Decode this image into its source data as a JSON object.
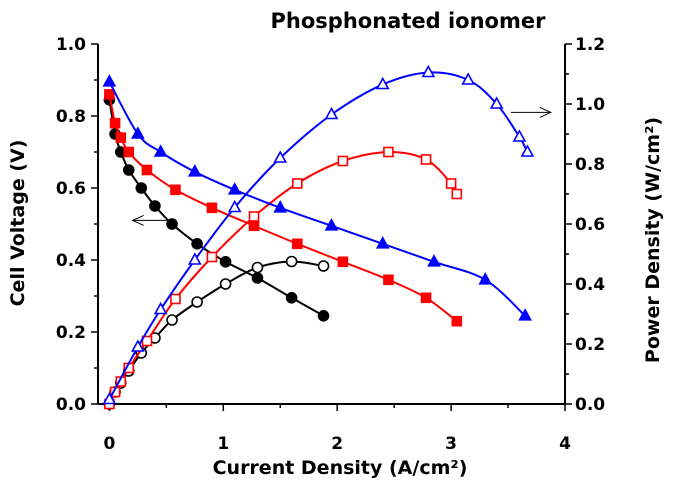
{
  "chart_data": {
    "type": "line",
    "title": "Phosphonated ionomer",
    "xlabel": "Current Density (A/cm²)",
    "ylabel": "Cell Voltage (V)",
    "y2label": "Power Density (W/cm²)",
    "xlim": [
      -0.1,
      4.0
    ],
    "ylim": [
      0.0,
      1.0
    ],
    "y2lim": [
      0.0,
      1.2
    ],
    "xticks": [
      "0",
      "1",
      "2",
      "3",
      "4"
    ],
    "yticks": [
      "0.0",
      "0.2",
      "0.4",
      "0.6",
      "0.8",
      "1.0"
    ],
    "y2ticks": [
      "0.0",
      "0.2",
      "0.4",
      "0.6",
      "0.8",
      "1.0",
      "1.2"
    ],
    "grid": false,
    "legend": "none",
    "annotations": [
      {
        "type": "arrow",
        "direction": "left",
        "points_to": "left axis (voltage)",
        "at": [
          0.38,
          0.51
        ]
      },
      {
        "type": "arrow",
        "direction": "right",
        "points_to": "right axis (power density)",
        "at": [
          3.7,
          0.81
        ]
      }
    ],
    "series": [
      {
        "kind": "voltage",
        "axis": "left",
        "color": "#000000",
        "marker": "circle-filled",
        "x": [
          0.0,
          0.05,
          0.1,
          0.17,
          0.28,
          0.4,
          0.55,
          0.77,
          1.02,
          1.3,
          1.6,
          1.88
        ],
        "y": [
          0.845,
          0.75,
          0.7,
          0.65,
          0.6,
          0.55,
          0.5,
          0.445,
          0.395,
          0.35,
          0.295,
          0.245
        ]
      },
      {
        "kind": "power",
        "axis": "right",
        "color": "#000000",
        "marker": "circle-open",
        "x": [
          0.0,
          0.05,
          0.1,
          0.17,
          0.28,
          0.4,
          0.55,
          0.77,
          1.02,
          1.3,
          1.6,
          1.88
        ],
        "y": [
          0.0,
          0.04,
          0.07,
          0.11,
          0.17,
          0.22,
          0.28,
          0.34,
          0.4,
          0.455,
          0.475,
          0.46
        ]
      },
      {
        "kind": "voltage",
        "axis": "left",
        "color": "#ff0000",
        "marker": "square-filled",
        "x": [
          0.0,
          0.05,
          0.1,
          0.17,
          0.33,
          0.58,
          0.9,
          1.27,
          1.65,
          2.05,
          2.45,
          2.78,
          3.05
        ],
        "y": [
          0.86,
          0.78,
          0.74,
          0.7,
          0.65,
          0.595,
          0.545,
          0.495,
          0.445,
          0.395,
          0.345,
          0.295,
          0.23
        ]
      },
      {
        "kind": "power",
        "axis": "right",
        "color": "#ff0000",
        "marker": "square-open",
        "x": [
          0.0,
          0.05,
          0.1,
          0.17,
          0.33,
          0.58,
          0.9,
          1.27,
          1.65,
          2.05,
          2.45,
          2.78,
          3.0,
          3.05
        ],
        "y": [
          0.0,
          0.04,
          0.075,
          0.12,
          0.21,
          0.35,
          0.49,
          0.625,
          0.735,
          0.81,
          0.84,
          0.815,
          0.735,
          0.7
        ]
      },
      {
        "kind": "voltage",
        "axis": "left",
        "color": "#0000ff",
        "marker": "triangle-filled",
        "x": [
          0.0,
          0.25,
          0.45,
          0.75,
          1.1,
          1.5,
          1.95,
          2.4,
          2.85,
          3.3,
          3.65
        ],
        "y": [
          0.895,
          0.75,
          0.7,
          0.645,
          0.595,
          0.545,
          0.495,
          0.445,
          0.395,
          0.345,
          0.245
        ]
      },
      {
        "kind": "power",
        "axis": "right",
        "color": "#0000ff",
        "marker": "triangle-open",
        "x": [
          0.0,
          0.25,
          0.45,
          0.75,
          1.1,
          1.5,
          1.95,
          2.4,
          2.8,
          3.15,
          3.4,
          3.6,
          3.67
        ],
        "y": [
          0.015,
          0.19,
          0.315,
          0.48,
          0.655,
          0.82,
          0.965,
          1.065,
          1.105,
          1.08,
          1.0,
          0.89,
          0.84
        ]
      }
    ]
  }
}
